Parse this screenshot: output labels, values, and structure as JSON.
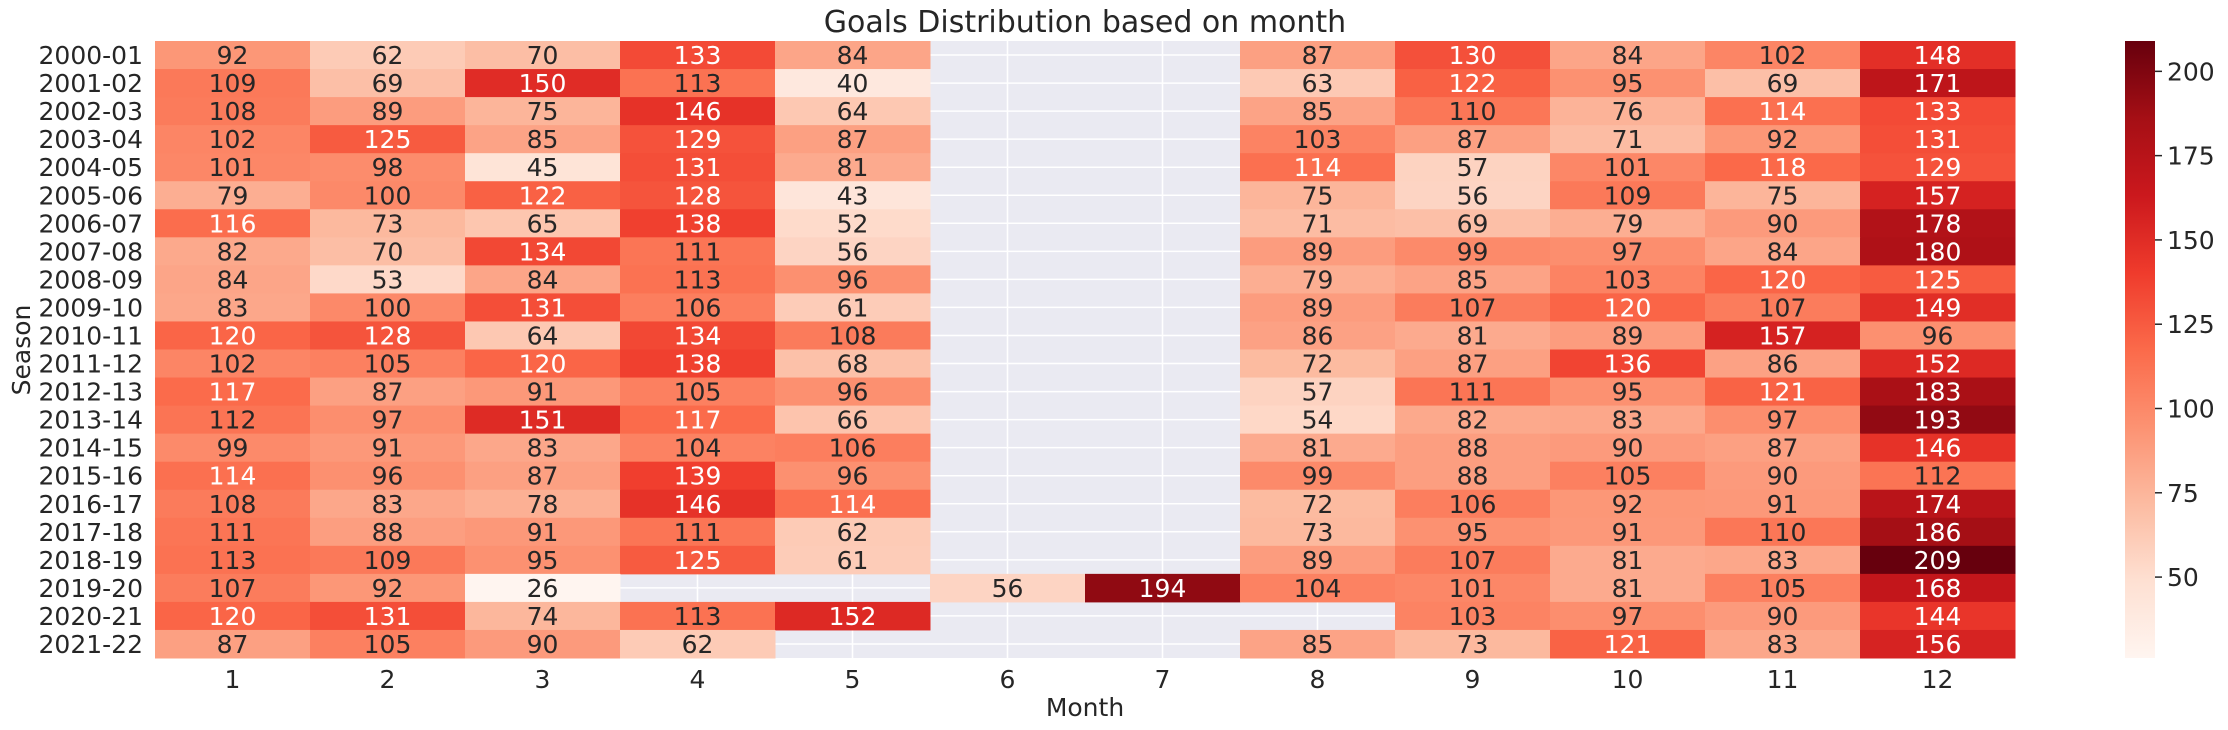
{
  "chart_data": {
    "type": "heatmap",
    "title": "Goals Distribution based on month",
    "xlabel": "Month",
    "ylabel": "Season",
    "x": [
      "1",
      "2",
      "3",
      "4",
      "5",
      "6",
      "7",
      "8",
      "9",
      "10",
      "11",
      "12"
    ],
    "y": [
      "2000-01",
      "2001-02",
      "2002-03",
      "2003-04",
      "2004-05",
      "2005-06",
      "2006-07",
      "2007-08",
      "2008-09",
      "2009-10",
      "2010-11",
      "2011-12",
      "2012-13",
      "2013-14",
      "2014-15",
      "2015-16",
      "2016-17",
      "2017-18",
      "2018-19",
      "2019-20",
      "2020-21",
      "2021-22"
    ],
    "values": [
      [
        92,
        62,
        70,
        133,
        84,
        null,
        null,
        87,
        130,
        84,
        102,
        148
      ],
      [
        109,
        69,
        150,
        113,
        40,
        null,
        null,
        63,
        122,
        95,
        69,
        171
      ],
      [
        108,
        89,
        75,
        146,
        64,
        null,
        null,
        85,
        110,
        76,
        114,
        133
      ],
      [
        102,
        125,
        85,
        129,
        87,
        null,
        null,
        103,
        87,
        71,
        92,
        131
      ],
      [
        101,
        98,
        45,
        131,
        81,
        null,
        null,
        114,
        57,
        101,
        118,
        129
      ],
      [
        79,
        100,
        122,
        128,
        43,
        null,
        null,
        75,
        56,
        109,
        75,
        157
      ],
      [
        116,
        73,
        65,
        138,
        52,
        null,
        null,
        71,
        69,
        79,
        90,
        178
      ],
      [
        82,
        70,
        134,
        111,
        56,
        null,
        null,
        89,
        99,
        97,
        84,
        180
      ],
      [
        84,
        53,
        84,
        113,
        96,
        null,
        null,
        79,
        85,
        103,
        120,
        125
      ],
      [
        83,
        100,
        131,
        106,
        61,
        null,
        null,
        89,
        107,
        120,
        107,
        149
      ],
      [
        120,
        128,
        64,
        134,
        108,
        null,
        null,
        86,
        81,
        89,
        157,
        96
      ],
      [
        102,
        105,
        120,
        138,
        68,
        null,
        null,
        72,
        87,
        136,
        86,
        152
      ],
      [
        117,
        87,
        91,
        105,
        96,
        null,
        null,
        57,
        111,
        95,
        121,
        183
      ],
      [
        112,
        97,
        151,
        117,
        66,
        null,
        null,
        54,
        82,
        83,
        97,
        193
      ],
      [
        99,
        91,
        83,
        104,
        106,
        null,
        null,
        81,
        88,
        90,
        87,
        146
      ],
      [
        114,
        96,
        87,
        139,
        96,
        null,
        null,
        99,
        88,
        105,
        90,
        112
      ],
      [
        108,
        83,
        78,
        146,
        114,
        null,
        null,
        72,
        106,
        92,
        91,
        174
      ],
      [
        111,
        88,
        91,
        111,
        62,
        null,
        null,
        73,
        95,
        91,
        110,
        186
      ],
      [
        113,
        109,
        95,
        125,
        61,
        null,
        null,
        89,
        107,
        81,
        83,
        209
      ],
      [
        107,
        92,
        26,
        null,
        null,
        56,
        194,
        104,
        101,
        81,
        105,
        168
      ],
      [
        120,
        131,
        74,
        113,
        152,
        null,
        null,
        null,
        103,
        97,
        90,
        144
      ],
      [
        87,
        105,
        90,
        62,
        null,
        null,
        null,
        85,
        73,
        121,
        83,
        156
      ]
    ],
    "colorbar": {
      "min": 26,
      "max": 209,
      "ticks": [
        50,
        75,
        100,
        125,
        150,
        175,
        200
      ]
    },
    "colormap": [
      "#fff5f0",
      "#fee0d2",
      "#fcbba1",
      "#fc9272",
      "#fb6a4a",
      "#ef3b2c",
      "#cb181d",
      "#a50f15",
      "#67000d"
    ],
    "missing_color": "#eaeaf2",
    "grid": true
  }
}
